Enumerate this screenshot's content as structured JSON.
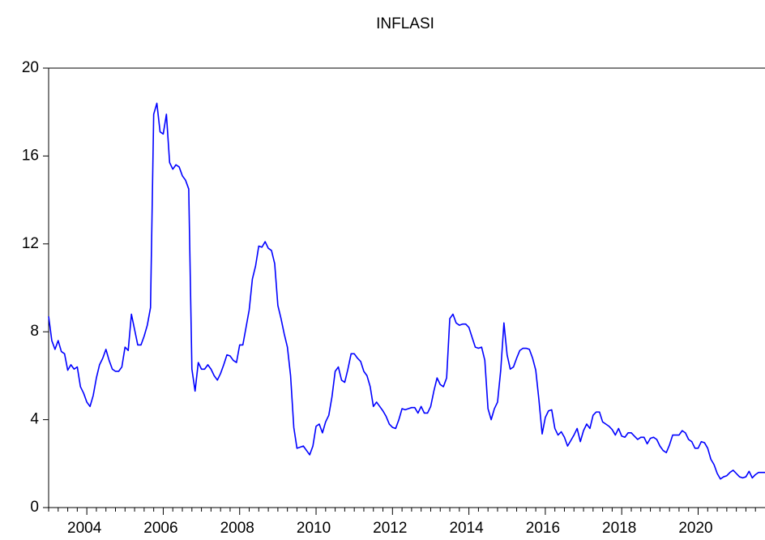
{
  "chart_data": {
    "type": "line",
    "title": "INFLASI",
    "series": [
      {
        "name": "INFLASI",
        "color": "#0000ff",
        "values": [
          8.7,
          7.6,
          7.2,
          7.6,
          7.1,
          7.0,
          6.25,
          6.5,
          6.3,
          6.4,
          5.5,
          5.2,
          4.8,
          4.6,
          5.1,
          5.9,
          6.5,
          6.8,
          7.2,
          6.7,
          6.3,
          6.2,
          6.2,
          6.4,
          7.3,
          7.15,
          8.8,
          8.1,
          7.4,
          7.4,
          7.8,
          8.3,
          9.1,
          17.9,
          18.4,
          17.1,
          17.0,
          17.9,
          15.7,
          15.4,
          15.6,
          15.5,
          15.1,
          14.9,
          14.5,
          6.3,
          5.3,
          6.6,
          6.3,
          6.3,
          6.5,
          6.3,
          6.0,
          5.8,
          6.1,
          6.5,
          6.95,
          6.9,
          6.7,
          6.6,
          7.4,
          7.4,
          8.2,
          9.0,
          10.4,
          11.0,
          11.9,
          11.85,
          12.1,
          11.8,
          11.7,
          11.1,
          9.2,
          8.6,
          7.9,
          7.3,
          6.0,
          3.65,
          2.7,
          2.75,
          2.8,
          2.6,
          2.4,
          2.8,
          3.7,
          3.8,
          3.4,
          3.9,
          4.2,
          5.05,
          6.2,
          6.4,
          5.8,
          5.7,
          6.3,
          7.0,
          7.0,
          6.8,
          6.65,
          6.2,
          6.0,
          5.5,
          4.6,
          4.8,
          4.6,
          4.4,
          4.15,
          3.8,
          3.65,
          3.6,
          4.0,
          4.5,
          4.45,
          4.5,
          4.55,
          4.55,
          4.3,
          4.6,
          4.3,
          4.3,
          4.6,
          5.3,
          5.9,
          5.6,
          5.5,
          5.9,
          8.6,
          8.8,
          8.4,
          8.3,
          8.35,
          8.35,
          8.2,
          7.75,
          7.3,
          7.25,
          7.3,
          6.7,
          4.5,
          4.0,
          4.5,
          4.8,
          6.25,
          8.4,
          6.95,
          6.3,
          6.4,
          6.8,
          7.15,
          7.25,
          7.25,
          7.2,
          6.8,
          6.25,
          4.9,
          3.35,
          4.1,
          4.4,
          4.45,
          3.6,
          3.3,
          3.45,
          3.2,
          2.8,
          3.05,
          3.3,
          3.6,
          3.0,
          3.5,
          3.8,
          3.6,
          4.2,
          4.35,
          4.35,
          3.9,
          3.8,
          3.7,
          3.55,
          3.3,
          3.6,
          3.25,
          3.2,
          3.4,
          3.4,
          3.25,
          3.1,
          3.2,
          3.2,
          2.9,
          3.15,
          3.2,
          3.1,
          2.8,
          2.6,
          2.5,
          2.85,
          3.3,
          3.3,
          3.3,
          3.5,
          3.4,
          3.1,
          3.0,
          2.7,
          2.7,
          3.0,
          2.95,
          2.7,
          2.2,
          1.95,
          1.55,
          1.3,
          1.4,
          1.45,
          1.6,
          1.7,
          1.55,
          1.4,
          1.35,
          1.4,
          1.65,
          1.35,
          1.5,
          1.6,
          1.6,
          1.6
        ]
      }
    ],
    "x": [
      2003,
      2003.083,
      2003.167,
      2003.25,
      2003.333,
      2003.417,
      2003.5,
      2003.583,
      2003.667,
      2003.75,
      2003.833,
      2003.917,
      2004,
      2004.083,
      2004.167,
      2004.25,
      2004.333,
      2004.417,
      2004.5,
      2004.583,
      2004.667,
      2004.75,
      2004.833,
      2004.917,
      2005,
      2005.083,
      2005.167,
      2005.25,
      2005.333,
      2005.417,
      2005.5,
      2005.583,
      2005.667,
      2005.75,
      2005.833,
      2005.917,
      2006,
      2006.083,
      2006.167,
      2006.25,
      2006.333,
      2006.417,
      2006.5,
      2006.583,
      2006.667,
      2006.75,
      2006.833,
      2006.917,
      2007,
      2007.083,
      2007.167,
      2007.25,
      2007.333,
      2007.417,
      2007.5,
      2007.583,
      2007.667,
      2007.75,
      2007.833,
      2007.917,
      2008,
      2008.083,
      2008.167,
      2008.25,
      2008.333,
      2008.417,
      2008.5,
      2008.583,
      2008.667,
      2008.75,
      2008.833,
      2008.917,
      2009,
      2009.083,
      2009.167,
      2009.25,
      2009.333,
      2009.417,
      2009.5,
      2009.583,
      2009.667,
      2009.75,
      2009.833,
      2009.917,
      2010,
      2010.083,
      2010.167,
      2010.25,
      2010.333,
      2010.417,
      2010.5,
      2010.583,
      2010.667,
      2010.75,
      2010.833,
      2010.917,
      2011,
      2011.083,
      2011.167,
      2011.25,
      2011.333,
      2011.417,
      2011.5,
      2011.583,
      2011.667,
      2011.75,
      2011.833,
      2011.917,
      2012,
      2012.083,
      2012.167,
      2012.25,
      2012.333,
      2012.417,
      2012.5,
      2012.583,
      2012.667,
      2012.75,
      2012.833,
      2012.917,
      2013,
      2013.083,
      2013.167,
      2013.25,
      2013.333,
      2013.417,
      2013.5,
      2013.583,
      2013.667,
      2013.75,
      2013.833,
      2013.917,
      2014,
      2014.083,
      2014.167,
      2014.25,
      2014.333,
      2014.417,
      2014.5,
      2014.583,
      2014.667,
      2014.75,
      2014.833,
      2014.917,
      2015,
      2015.083,
      2015.167,
      2015.25,
      2015.333,
      2015.417,
      2015.5,
      2015.583,
      2015.667,
      2015.75,
      2015.833,
      2015.917,
      2016,
      2016.083,
      2016.167,
      2016.25,
      2016.333,
      2016.417,
      2016.5,
      2016.583,
      2016.667,
      2016.75,
      2016.833,
      2016.917,
      2017,
      2017.083,
      2017.167,
      2017.25,
      2017.333,
      2017.417,
      2017.5,
      2017.583,
      2017.667,
      2017.75,
      2017.833,
      2017.917,
      2018,
      2018.083,
      2018.167,
      2018.25,
      2018.333,
      2018.417,
      2018.5,
      2018.583,
      2018.667,
      2018.75,
      2018.833,
      2018.917,
      2019,
      2019.083,
      2019.167,
      2019.25,
      2019.333,
      2019.417,
      2019.5,
      2019.583,
      2019.667,
      2019.75,
      2019.833,
      2019.917,
      2020,
      2020.083,
      2020.167,
      2020.25,
      2020.333,
      2020.417,
      2020.5,
      2020.583,
      2020.667,
      2020.75,
      2020.833,
      2020.917,
      2021,
      2021.083,
      2021.167,
      2021.25,
      2021.333,
      2021.417,
      2021.5,
      2021.583,
      2021.667,
      2021.75
    ],
    "xlim": [
      2003,
      2021.75
    ],
    "xticks": [
      2004,
      2006,
      2008,
      2010,
      2012,
      2014,
      2016,
      2018,
      2020
    ],
    "xminorticks": [
      2003,
      2003.25,
      2003.5,
      2003.75,
      2004.25,
      2004.5,
      2004.75,
      2005,
      2005.25,
      2005.5,
      2005.75,
      2006.25,
      2006.5,
      2006.75,
      2007,
      2007.25,
      2007.5,
      2007.75,
      2008.25,
      2008.5,
      2008.75,
      2009,
      2009.25,
      2009.5,
      2009.75,
      2010.25,
      2010.5,
      2010.75,
      2011,
      2011.25,
      2011.5,
      2011.75,
      2012.25,
      2012.5,
      2012.75,
      2013,
      2013.25,
      2013.5,
      2013.75,
      2014.25,
      2014.5,
      2014.75,
      2015,
      2015.25,
      2015.5,
      2015.75,
      2016.25,
      2016.5,
      2016.75,
      2017,
      2017.25,
      2017.5,
      2017.75,
      2018.25,
      2018.5,
      2018.75,
      2019,
      2019.25,
      2019.5,
      2019.75,
      2020.25,
      2020.5,
      2020.75,
      2021,
      2021.25,
      2021.5
    ],
    "ylim": [
      0,
      20
    ],
    "yticks": [
      0,
      4,
      8,
      12,
      16,
      20
    ],
    "grid": false
  }
}
